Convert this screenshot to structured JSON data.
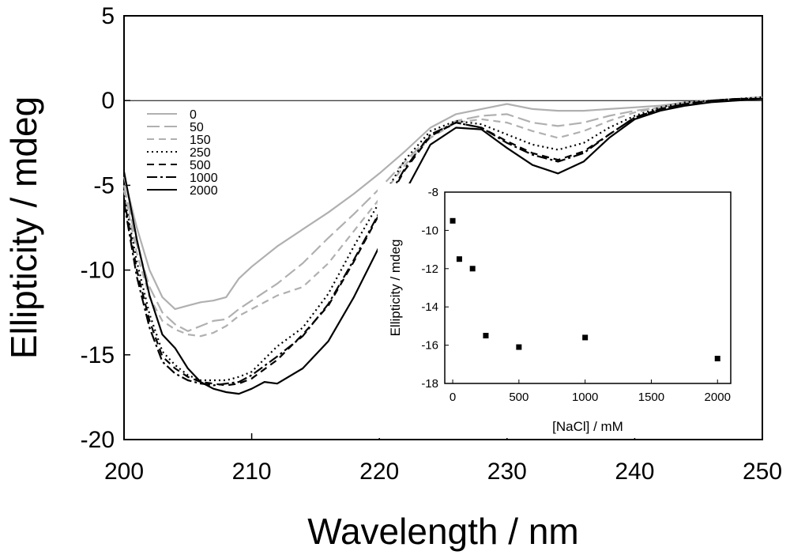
{
  "chart_data": [
    {
      "type": "line",
      "title": "",
      "xlabel": "Wavelength / nm",
      "ylabel": "Ellipticity / mdeg",
      "xlim": [
        200,
        250
      ],
      "ylim": [
        -20,
        5
      ],
      "xticks": [
        "200",
        "210",
        "220",
        "230",
        "240",
        "250"
      ],
      "yticks": [
        "5",
        "0",
        "-5",
        "-10",
        "-15",
        "-20"
      ],
      "legend_position": "top-left",
      "zero_line": true,
      "series": [
        {
          "name": "0",
          "color": "#b0b0b0",
          "dash": "solid",
          "x": [
            200,
            201,
            202,
            203,
            204,
            205,
            206,
            207,
            208,
            209,
            210,
            212,
            214,
            216,
            218,
            220,
            222,
            224,
            226,
            228,
            230,
            232,
            234,
            236,
            238,
            240,
            242,
            244,
            246,
            248,
            250
          ],
          "y": [
            -4.5,
            -7.5,
            -10,
            -11.6,
            -12.3,
            -12.1,
            -11.9,
            -11.8,
            -11.6,
            -10.5,
            -9.8,
            -8.6,
            -7.6,
            -6.6,
            -5.5,
            -4.3,
            -3,
            -1.6,
            -0.8,
            -0.5,
            -0.2,
            -0.5,
            -0.6,
            -0.6,
            -0.5,
            -0.4,
            -0.3,
            -0.1,
            0,
            0.1,
            0.2
          ]
        },
        {
          "name": "50",
          "color": "#b0b0b0",
          "dash": "longdash",
          "x": [
            200,
            201,
            202,
            203,
            204,
            205,
            206,
            207,
            208,
            209,
            210,
            212,
            214,
            216,
            218,
            220,
            222,
            224,
            226,
            228,
            230,
            232,
            234,
            236,
            238,
            240,
            242,
            244,
            246,
            248,
            250
          ],
          "y": [
            -5,
            -8.5,
            -11,
            -12.5,
            -13.2,
            -13.6,
            -13.3,
            -13,
            -12.9,
            -12.3,
            -11.8,
            -10.8,
            -9.6,
            -8.1,
            -6.7,
            -5.2,
            -3.6,
            -2.1,
            -1.2,
            -0.9,
            -0.8,
            -1.3,
            -1.5,
            -1.3,
            -0.9,
            -0.6,
            -0.4,
            -0.2,
            0,
            0.1,
            0.2
          ]
        },
        {
          "name": "150",
          "color": "#b0b0b0",
          "dash": "dash",
          "x": [
            200,
            201,
            202,
            203,
            204,
            205,
            206,
            207,
            208,
            209,
            210,
            212,
            214,
            216,
            218,
            220,
            222,
            224,
            226,
            228,
            230,
            232,
            234,
            236,
            238,
            240,
            242,
            244,
            246,
            248,
            250
          ],
          "y": [
            -5.3,
            -9,
            -11.6,
            -13,
            -13.5,
            -13.8,
            -13.9,
            -13.7,
            -13.3,
            -12.7,
            -12.3,
            -11.5,
            -11,
            -9.6,
            -7.7,
            -5.8,
            -3.8,
            -2.2,
            -1.3,
            -1.1,
            -1.3,
            -1.8,
            -2.2,
            -1.8,
            -1.2,
            -0.7,
            -0.4,
            -0.2,
            0,
            0.1,
            0.2
          ]
        },
        {
          "name": "250",
          "color": "#000000",
          "dash": "dot",
          "x": [
            200,
            201,
            202,
            203,
            204,
            205,
            206,
            207,
            208,
            209,
            210,
            212,
            214,
            216,
            218,
            220,
            222,
            224,
            226,
            228,
            230,
            232,
            234,
            236,
            238,
            240,
            242,
            244,
            246,
            248,
            250
          ],
          "y": [
            -5.6,
            -9.5,
            -12.6,
            -14.8,
            -15.6,
            -16.2,
            -16.5,
            -16.5,
            -16.5,
            -16.3,
            -16,
            -14.5,
            -13.4,
            -11.4,
            -8.6,
            -6,
            -3.5,
            -1.8,
            -1.2,
            -1.4,
            -2,
            -2.6,
            -2.9,
            -2.5,
            -1.6,
            -0.9,
            -0.4,
            -0.1,
            0,
            0.1,
            0.2
          ]
        },
        {
          "name": "500",
          "color": "#000000",
          "dash": "dash",
          "x": [
            200,
            201,
            202,
            203,
            204,
            205,
            206,
            207,
            208,
            209,
            210,
            212,
            214,
            216,
            218,
            220,
            222,
            224,
            226,
            228,
            230,
            232,
            234,
            236,
            238,
            240,
            242,
            244,
            246,
            248,
            250
          ],
          "y": [
            -5.8,
            -10,
            -13,
            -15.1,
            -15.8,
            -16.3,
            -16.6,
            -16.7,
            -16.8,
            -16.7,
            -16.4,
            -15.3,
            -13.8,
            -12.1,
            -9.5,
            -6.7,
            -4.1,
            -2.1,
            -1.3,
            -1.6,
            -2.4,
            -3.1,
            -3.5,
            -3,
            -2,
            -1,
            -0.5,
            -0.2,
            0,
            0.1,
            0.1
          ]
        },
        {
          "name": "1000",
          "color": "#000000",
          "dash": "dashdot",
          "x": [
            200,
            201,
            202,
            203,
            204,
            205,
            206,
            207,
            208,
            209,
            210,
            212,
            214,
            216,
            218,
            220,
            222,
            224,
            226,
            228,
            230,
            232,
            234,
            236,
            238,
            240,
            242,
            244,
            246,
            248,
            250
          ],
          "y": [
            -6,
            -10.4,
            -13.4,
            -15.4,
            -16.1,
            -16.5,
            -16.7,
            -16.8,
            -16.7,
            -16.6,
            -16.2,
            -15.1,
            -13.9,
            -12,
            -9.4,
            -6.6,
            -4,
            -2,
            -1.3,
            -1.6,
            -2.5,
            -3.2,
            -3.6,
            -3.1,
            -2,
            -1,
            -0.5,
            -0.2,
            0,
            0.1,
            0.1
          ]
        },
        {
          "name": "2000",
          "color": "#000000",
          "dash": "solid",
          "x": [
            200,
            201,
            202,
            203,
            204,
            205,
            206,
            207,
            208,
            209,
            210,
            211,
            212,
            214,
            216,
            218,
            220,
            222,
            224,
            226,
            228,
            230,
            232,
            234,
            236,
            238,
            240,
            242,
            244,
            246,
            248,
            250
          ],
          "y": [
            -4.2,
            -8.2,
            -11.5,
            -13.8,
            -14.6,
            -15.8,
            -16.6,
            -17,
            -17.2,
            -17.3,
            -17,
            -16.6,
            -16.7,
            -15.8,
            -14.2,
            -11.6,
            -8.6,
            -5.4,
            -2.6,
            -1.6,
            -1.7,
            -2.8,
            -3.8,
            -4.3,
            -3.6,
            -2.2,
            -1.1,
            -0.6,
            -0.3,
            -0.1,
            0,
            0.1
          ]
        }
      ]
    },
    {
      "type": "scatter",
      "title": "",
      "xlabel": "[NaCl] / mM",
      "ylabel": "Ellipticity / mdeg",
      "xlim": [
        -60,
        2100
      ],
      "ylim": [
        -18,
        -8
      ],
      "xticks": [
        "0",
        "500",
        "1000",
        "1500",
        "2000"
      ],
      "yticks": [
        "-8",
        "-10",
        "-12",
        "-14",
        "-16",
        "-18"
      ],
      "marker": "square",
      "x": [
        0,
        50,
        150,
        250,
        500,
        1000,
        2000
      ],
      "y": [
        -9.5,
        -11.5,
        -12,
        -15.5,
        -16.1,
        -15.6,
        -16.7
      ]
    }
  ]
}
